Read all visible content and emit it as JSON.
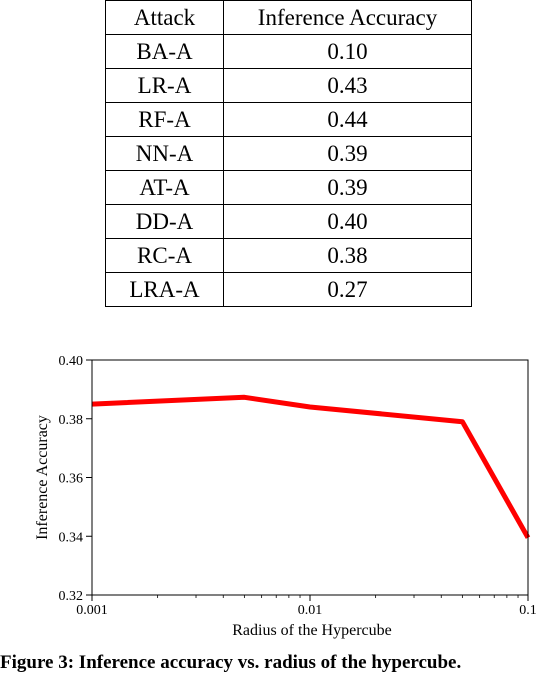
{
  "table": {
    "headers": [
      "Attack",
      "Inference Accuracy"
    ],
    "rows": [
      [
        "BA-A",
        "0.10"
      ],
      [
        "LR-A",
        "0.43"
      ],
      [
        "RF-A",
        "0.44"
      ],
      [
        "NN-A",
        "0.39"
      ],
      [
        "AT-A",
        "0.39"
      ],
      [
        "DD-A",
        "0.40"
      ],
      [
        "RC-A",
        "0.38"
      ],
      [
        "LRA-A",
        "0.27"
      ]
    ]
  },
  "chart_data": {
    "type": "line",
    "xlabel": "Radius of the Hypercube",
    "ylabel": "Inference Accuracy",
    "x_scale": "log",
    "xlim": [
      0.001,
      0.1
    ],
    "ylim": [
      0.32,
      0.4
    ],
    "x_ticks": [
      0.001,
      0.01,
      0.1
    ],
    "x_tick_labels": [
      "0.001",
      "0.01",
      "0.1"
    ],
    "y_ticks": [
      0.32,
      0.34,
      0.36,
      0.38,
      0.4
    ],
    "y_tick_labels": [
      "0.32",
      "0.34",
      "0.36",
      "0.38",
      "0.40"
    ],
    "series": [
      {
        "color": "#ff0000",
        "x": [
          0.001,
          0.005,
          0.01,
          0.05,
          0.1
        ],
        "y": [
          0.385,
          0.3873,
          0.384,
          0.379,
          0.3395
        ]
      }
    ],
    "grid": false
  },
  "caption": {
    "text": "Figure 3: Inference accuracy vs. radius of the hypercube."
  }
}
